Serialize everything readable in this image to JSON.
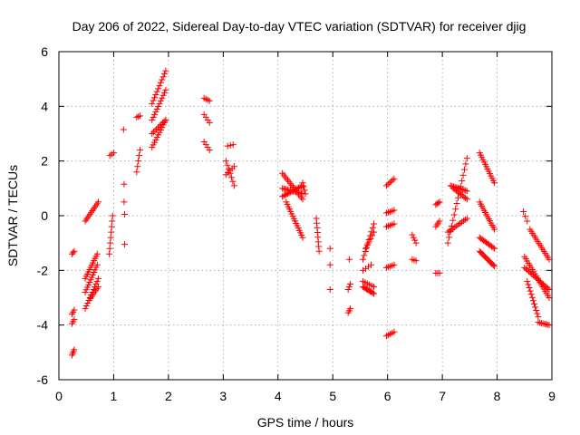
{
  "chart_data": {
    "type": "scatter",
    "title": "Day 206 of 2022, Sidereal Day-to-day VTEC variation (SDTVAR) for receiver djig",
    "xlabel": "GPS time / hours",
    "ylabel": "SDTVAR / TECUs",
    "xlim": [
      0,
      9
    ],
    "ylim": [
      -6,
      6
    ],
    "x_ticks": [
      0,
      1,
      2,
      3,
      4,
      5,
      6,
      7,
      8,
      9
    ],
    "y_ticks": [
      -6,
      -4,
      -2,
      0,
      2,
      4,
      6
    ],
    "x_tick_labels": [
      "0",
      "1",
      "2",
      "3",
      "4",
      "5",
      "6",
      "7",
      "8",
      "9"
    ],
    "y_tick_labels": [
      "-6",
      "-4",
      "-2",
      "0",
      "2",
      "4",
      "6"
    ],
    "grid": true,
    "marker": "+",
    "colors": {
      "series": "#ff0000",
      "grid": "#a0a0a0",
      "axes": "#000000"
    },
    "series": [
      {
        "name": "SDTVAR",
        "segments": [
          {
            "x0": 0.24,
            "y0": -1.4,
            "x1": 0.28,
            "y1": -1.3,
            "n": 3
          },
          {
            "x0": 0.24,
            "y0": -3.6,
            "x1": 0.28,
            "y1": -3.45,
            "n": 3
          },
          {
            "x0": 0.24,
            "y0": -3.95,
            "x1": 0.28,
            "y1": -3.8,
            "n": 3
          },
          {
            "x0": 0.24,
            "y0": -5.1,
            "x1": 0.28,
            "y1": -4.9,
            "n": 4
          },
          {
            "x0": 0.48,
            "y0": -0.2,
            "x1": 0.72,
            "y1": 0.5,
            "n": 12
          },
          {
            "x0": 0.48,
            "y0": -2.3,
            "x1": 0.7,
            "y1": -1.4,
            "n": 12
          },
          {
            "x0": 0.48,
            "y0": -2.8,
            "x1": 0.7,
            "y1": -1.8,
            "n": 12
          },
          {
            "x0": 0.48,
            "y0": -3.4,
            "x1": 0.72,
            "y1": -2.3,
            "n": 12
          },
          {
            "x0": 0.55,
            "y0": -3.1,
            "x1": 0.72,
            "y1": -2.6,
            "n": 8
          },
          {
            "x0": 0.92,
            "y0": -1.4,
            "x1": 0.98,
            "y1": 0.0,
            "n": 8
          },
          {
            "x0": 0.93,
            "y0": 2.2,
            "x1": 1.0,
            "y1": 2.3,
            "n": 3
          },
          {
            "x0": 1.18,
            "y0": 3.15,
            "x1": 1.18,
            "y1": 3.15,
            "n": 1
          },
          {
            "x0": 1.19,
            "y0": 1.15,
            "x1": 1.19,
            "y1": 1.15,
            "n": 1
          },
          {
            "x0": 1.19,
            "y0": 0.5,
            "x1": 1.19,
            "y1": 0.5,
            "n": 1
          },
          {
            "x0": 1.2,
            "y0": 0.05,
            "x1": 1.2,
            "y1": 0.05,
            "n": 1
          },
          {
            "x0": 1.2,
            "y0": -1.05,
            "x1": 1.2,
            "y1": -1.05,
            "n": 1
          },
          {
            "x0": 1.42,
            "y0": 3.6,
            "x1": 1.48,
            "y1": 3.65,
            "n": 3
          },
          {
            "x0": 1.42,
            "y0": 1.6,
            "x1": 1.48,
            "y1": 2.4,
            "n": 5
          },
          {
            "x0": 1.7,
            "y0": 2.5,
            "x1": 1.95,
            "y1": 3.5,
            "n": 12
          },
          {
            "x0": 1.7,
            "y0": 3.0,
            "x1": 1.95,
            "y1": 3.5,
            "n": 10
          },
          {
            "x0": 1.7,
            "y0": 4.1,
            "x1": 1.95,
            "y1": 5.3,
            "n": 12
          },
          {
            "x0": 1.7,
            "y0": 3.5,
            "x1": 1.95,
            "y1": 4.6,
            "n": 12
          },
          {
            "x0": 2.65,
            "y0": 4.3,
            "x1": 2.75,
            "y1": 4.2,
            "n": 4
          },
          {
            "x0": 2.65,
            "y0": 3.7,
            "x1": 2.75,
            "y1": 3.4,
            "n": 4
          },
          {
            "x0": 2.65,
            "y0": 2.7,
            "x1": 2.75,
            "y1": 2.4,
            "n": 4
          },
          {
            "x0": 3.05,
            "y0": 2.0,
            "x1": 3.2,
            "y1": 1.1,
            "n": 7
          },
          {
            "x0": 3.05,
            "y0": 1.5,
            "x1": 3.2,
            "y1": 1.8,
            "n": 5
          },
          {
            "x0": 3.08,
            "y0": 2.55,
            "x1": 3.18,
            "y1": 2.6,
            "n": 3
          },
          {
            "x0": 4.08,
            "y0": 1.55,
            "x1": 4.45,
            "y1": 0.6,
            "n": 16
          },
          {
            "x0": 4.08,
            "y0": 0.7,
            "x1": 4.45,
            "y1": 1.1,
            "n": 16
          },
          {
            "x0": 4.08,
            "y0": 1.0,
            "x1": 4.45,
            "y1": 0.8,
            "n": 16
          },
          {
            "x0": 4.15,
            "y0": 0.5,
            "x1": 4.45,
            "y1": -0.8,
            "n": 16
          },
          {
            "x0": 4.45,
            "y0": 1.2,
            "x1": 4.5,
            "y1": 0.8,
            "n": 4
          },
          {
            "x0": 4.7,
            "y0": -0.1,
            "x1": 4.75,
            "y1": -1.3,
            "n": 8
          },
          {
            "x0": 4.95,
            "y0": -1.2,
            "x1": 4.95,
            "y1": -1.2,
            "n": 1
          },
          {
            "x0": 4.95,
            "y0": -1.8,
            "x1": 4.95,
            "y1": -1.8,
            "n": 1
          },
          {
            "x0": 4.95,
            "y0": -2.7,
            "x1": 4.95,
            "y1": -2.7,
            "n": 1
          },
          {
            "x0": 5.28,
            "y0": -2.7,
            "x1": 5.32,
            "y1": -2.5,
            "n": 3
          },
          {
            "x0": 5.28,
            "y0": -3.55,
            "x1": 5.32,
            "y1": -3.4,
            "n": 3
          },
          {
            "x0": 5.3,
            "y0": -1.6,
            "x1": 5.3,
            "y1": -1.6,
            "n": 1
          },
          {
            "x0": 5.55,
            "y0": -1.6,
            "x1": 5.75,
            "y1": -0.3,
            "n": 10
          },
          {
            "x0": 5.55,
            "y0": -2.0,
            "x1": 5.7,
            "y1": -1.8,
            "n": 4
          },
          {
            "x0": 5.55,
            "y0": -2.6,
            "x1": 5.75,
            "y1": -2.85,
            "n": 10
          },
          {
            "x0": 5.55,
            "y0": -2.4,
            "x1": 5.75,
            "y1": -2.6,
            "n": 6
          },
          {
            "x0": 5.6,
            "y0": -1.2,
            "x1": 5.75,
            "y1": -0.6,
            "n": 6
          },
          {
            "x0": 5.98,
            "y0": 1.1,
            "x1": 6.12,
            "y1": 1.35,
            "n": 6
          },
          {
            "x0": 5.98,
            "y0": 0.1,
            "x1": 6.12,
            "y1": 0.2,
            "n": 5
          },
          {
            "x0": 5.98,
            "y0": -0.4,
            "x1": 6.12,
            "y1": -0.3,
            "n": 5
          },
          {
            "x0": 5.98,
            "y0": -1.9,
            "x1": 6.12,
            "y1": -1.8,
            "n": 5
          },
          {
            "x0": 5.98,
            "y0": -4.4,
            "x1": 6.12,
            "y1": -4.25,
            "n": 5
          },
          {
            "x0": 6.45,
            "y0": -0.7,
            "x1": 6.52,
            "y1": -1.0,
            "n": 4
          },
          {
            "x0": 6.45,
            "y0": -1.6,
            "x1": 6.52,
            "y1": -1.65,
            "n": 3
          },
          {
            "x0": 6.88,
            "y0": 0.4,
            "x1": 6.95,
            "y1": 0.5,
            "n": 4
          },
          {
            "x0": 6.88,
            "y0": -0.4,
            "x1": 6.95,
            "y1": -0.2,
            "n": 4
          },
          {
            "x0": 6.88,
            "y0": -2.1,
            "x1": 6.95,
            "y1": -2.1,
            "n": 3
          },
          {
            "x0": 7.1,
            "y0": -1.0,
            "x1": 7.45,
            "y1": 2.1,
            "n": 16
          },
          {
            "x0": 7.1,
            "y0": -0.6,
            "x1": 7.45,
            "y1": -0.1,
            "n": 12
          },
          {
            "x0": 7.15,
            "y0": 1.1,
            "x1": 7.45,
            "y1": 0.9,
            "n": 12
          },
          {
            "x0": 7.2,
            "y0": 1.0,
            "x1": 7.45,
            "y1": 0.6,
            "n": 10
          },
          {
            "x0": 7.68,
            "y0": 2.3,
            "x1": 7.95,
            "y1": 1.2,
            "n": 14
          },
          {
            "x0": 7.68,
            "y0": 0.5,
            "x1": 7.95,
            "y1": -0.5,
            "n": 14
          },
          {
            "x0": 7.68,
            "y0": -0.8,
            "x1": 7.95,
            "y1": -1.2,
            "n": 12
          },
          {
            "x0": 7.68,
            "y0": -1.3,
            "x1": 7.95,
            "y1": -1.85,
            "n": 14
          },
          {
            "x0": 8.48,
            "y0": 0.15,
            "x1": 8.55,
            "y1": -0.2,
            "n": 3
          },
          {
            "x0": 8.5,
            "y0": -1.5,
            "x1": 8.95,
            "y1": -3.0,
            "n": 20
          },
          {
            "x0": 8.5,
            "y0": -1.9,
            "x1": 8.95,
            "y1": -2.7,
            "n": 18
          },
          {
            "x0": 8.55,
            "y0": -2.4,
            "x1": 8.75,
            "y1": -3.7,
            "n": 12
          },
          {
            "x0": 8.6,
            "y0": -0.5,
            "x1": 8.95,
            "y1": -1.6,
            "n": 16
          },
          {
            "x0": 8.75,
            "y0": -3.9,
            "x1": 8.95,
            "y1": -4.0,
            "n": 8
          }
        ]
      }
    ]
  }
}
